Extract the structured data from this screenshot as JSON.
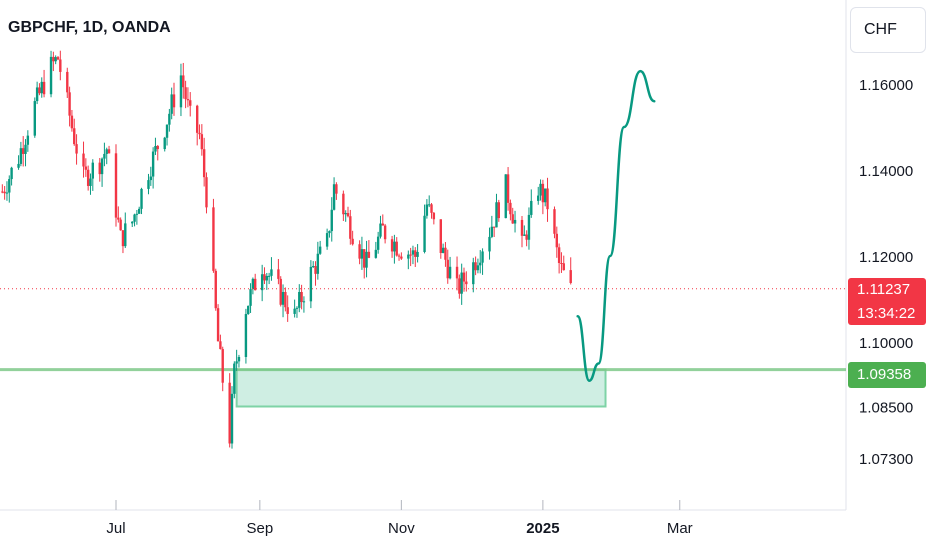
{
  "header": {
    "symbol_title": "GBPCHF, 1D, OANDA"
  },
  "currency_button": {
    "label": "CHF"
  },
  "price_axis": {
    "ticks": [
      "1.16000",
      "1.14000",
      "1.12000",
      "1.10000",
      "1.08500",
      "1.07300"
    ],
    "tick_values": [
      1.16,
      1.14,
      1.12,
      1.1,
      1.085,
      1.073
    ]
  },
  "last_price": {
    "value": "1.11237",
    "countdown": "13:34:22"
  },
  "zone_level": {
    "value": "1.09358"
  },
  "time_axis": {
    "labels": [
      "Jul",
      "Sep",
      "Nov",
      "2025",
      "Mar"
    ]
  },
  "colors": {
    "up": "#089981",
    "down": "#f23645",
    "zone_fill": "#cfeee3",
    "zone_line": "#4caf50",
    "projection": "#089981"
  },
  "chart_data": {
    "type": "candlestick",
    "title": "GBPCHF, 1D, OANDA",
    "ylabel": "CHF",
    "ylim": [
      1.068,
      1.178
    ],
    "y_ticks": [
      1.16,
      1.14,
      1.12,
      1.1,
      1.085,
      1.073
    ],
    "x_range": [
      "2024-05-12",
      "2025-03-22"
    ],
    "x_ticks": [
      {
        "date": "2024-07-01",
        "label": "Jul"
      },
      {
        "date": "2024-09-01",
        "label": "Sep"
      },
      {
        "date": "2024-11-01",
        "label": "Nov"
      },
      {
        "date": "2025-01-01",
        "label": "2025"
      },
      {
        "date": "2025-03-01",
        "label": "Mar"
      }
    ],
    "close_path": [
      [
        "2024-05-13",
        1.135
      ],
      [
        "2024-05-20",
        1.143
      ],
      [
        "2024-05-27",
        1.155
      ],
      [
        "2024-06-03",
        1.164
      ],
      [
        "2024-06-06",
        1.166
      ],
      [
        "2024-06-12",
        1.15
      ],
      [
        "2024-06-17",
        1.138
      ],
      [
        "2024-06-24",
        1.142
      ],
      [
        "2024-06-27",
        1.145
      ],
      [
        "2024-07-03",
        1.124
      ],
      [
        "2024-07-08",
        1.128
      ],
      [
        "2024-07-15",
        1.14
      ],
      [
        "2024-07-22",
        1.15
      ],
      [
        "2024-07-29",
        1.162
      ],
      [
        "2024-08-02",
        1.152
      ],
      [
        "2024-08-06",
        1.148
      ],
      [
        "2024-08-09",
        1.134
      ],
      [
        "2024-08-14",
        1.1
      ],
      [
        "2024-08-19",
        1.078
      ],
      [
        "2024-08-21",
        1.093
      ],
      [
        "2024-08-26",
        1.108
      ],
      [
        "2024-09-02",
        1.118
      ],
      [
        "2024-09-09",
        1.112
      ],
      [
        "2024-09-16",
        1.106
      ],
      [
        "2024-09-23",
        1.116
      ],
      [
        "2024-09-30",
        1.123
      ],
      [
        "2024-10-03",
        1.136
      ],
      [
        "2024-10-10",
        1.127
      ],
      [
        "2024-10-17",
        1.118
      ],
      [
        "2024-10-24",
        1.126
      ],
      [
        "2024-10-31",
        1.122
      ],
      [
        "2024-11-07",
        1.12
      ],
      [
        "2024-11-12",
        1.132
      ],
      [
        "2024-11-18",
        1.122
      ],
      [
        "2024-11-25",
        1.112
      ],
      [
        "2024-12-02",
        1.118
      ],
      [
        "2024-12-09",
        1.126
      ],
      [
        "2024-12-16",
        1.136
      ],
      [
        "2024-12-23",
        1.122
      ],
      [
        "2024-12-30",
        1.136
      ],
      [
        "2025-01-03",
        1.132
      ],
      [
        "2025-01-08",
        1.118
      ],
      [
        "2025-01-13",
        1.112
      ]
    ],
    "last_price": 1.11237,
    "horizontal_level": 1.09358,
    "demand_zone": {
      "y_top": 1.09358,
      "y_bottom": 1.085,
      "x_start": "2024-08-22",
      "x_end": "2025-01-28"
    },
    "projection_path": [
      [
        "2025-01-16",
        1.106
      ],
      [
        "2025-01-21",
        1.091
      ],
      [
        "2025-01-25",
        1.095
      ],
      [
        "2025-01-30",
        1.12
      ],
      [
        "2025-02-05",
        1.15
      ],
      [
        "2025-02-12",
        1.163
      ],
      [
        "2025-02-18",
        1.156
      ]
    ],
    "grid": false
  }
}
